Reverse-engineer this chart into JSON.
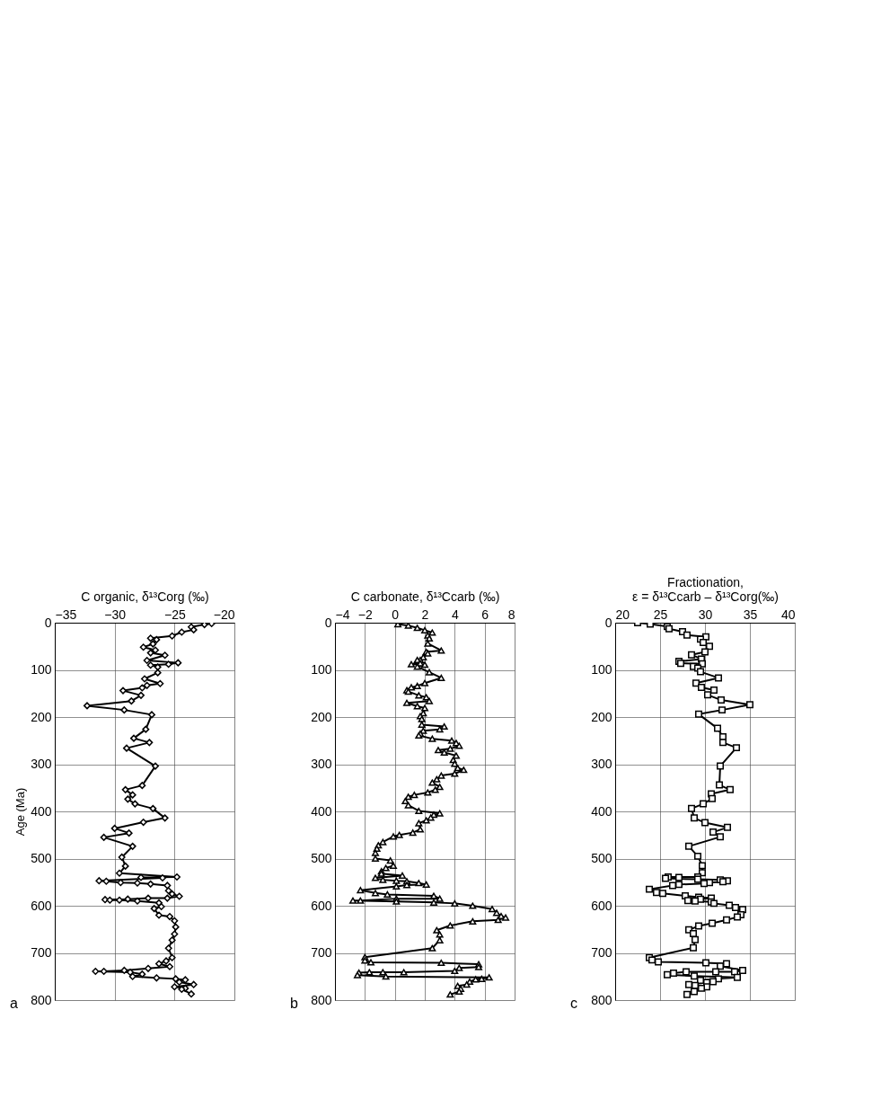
{
  "chart_data": [
    {
      "type": "line",
      "xlabel": "C organic, δ¹³Corg (‰)",
      "ylabel": "Age (Ma)",
      "xlim": [
        -35,
        -20
      ],
      "xticks": [
        -35,
        -30,
        -25,
        -20
      ],
      "ylim": [
        800,
        0
      ],
      "yticks": [
        0,
        100,
        200,
        300,
        400,
        500,
        600,
        700,
        800
      ],
      "grid": true,
      "marker": "diamond",
      "annotations": [
        "a"
      ],
      "series": [
        {
          "color": "#000000",
          "x": [
            -21.9,
            -22.5,
            -23.6,
            -23.4,
            -24.4,
            -25.2,
            -27.0,
            -26.5,
            -26.8,
            -27.6,
            -26.6,
            -27.0,
            -25.8,
            -27.3,
            -24.7,
            -25.5,
            -27.0,
            -26.4,
            -26.4,
            -27.5,
            -26.2,
            -27.3,
            -27.7,
            -29.3,
            -27.8,
            -28.6,
            -32.3,
            -29.2,
            -26.9,
            -27.4,
            -28.4,
            -27.1,
            -29.0,
            -26.6,
            -27.7,
            -29.1,
            -28.5,
            -28.9,
            -28.3,
            -26.8,
            -25.8,
            -27.6,
            -30.0,
            -28.8,
            -30.9,
            -28.5,
            -29.4,
            -29.1,
            -29.6,
            -24.8,
            -27.8,
            -26.0,
            -31.3,
            -30.7,
            -29.5,
            -28.1,
            -27.0,
            -25.6,
            -25.5,
            -25.2,
            -24.6,
            -25.6,
            -27.2,
            -28.9,
            -30.8,
            -30.4,
            -29.6,
            -28.1,
            -26.3,
            -26.1,
            -26.7,
            -26.3,
            -25.4,
            -25.0,
            -24.9,
            -25.0,
            -25.2,
            -25.5,
            -25.2,
            -25.7,
            -26.3,
            -25.4,
            -27.2,
            -29.2,
            -30.9,
            -31.6,
            -28.7,
            -27.7,
            -28.5,
            -26.5,
            -24.9,
            -24.1,
            -24.6,
            -23.4,
            -25.0,
            -24.1,
            -24.4,
            -23.6
          ],
          "values": [
            2,
            4,
            9,
            15,
            20,
            28,
            33,
            36,
            45,
            52,
            58,
            64,
            69,
            80,
            85,
            88,
            90,
            94,
            106,
            119,
            129,
            133,
            138,
            144,
            154,
            166,
            176,
            185,
            195,
            226,
            245,
            254,
            266,
            304,
            345,
            354,
            365,
            374,
            384,
            394,
            414,
            423,
            436,
            446,
            455,
            474,
            497,
            516,
            531,
            539,
            540,
            541,
            547,
            548,
            551,
            552,
            554,
            557,
            568,
            575,
            580,
            584,
            584,
            586,
            587,
            588,
            588,
            590,
            594,
            602,
            606,
            620,
            623,
            632,
            645,
            660,
            673,
            690,
            710,
            717,
            723,
            729,
            733,
            737,
            739,
            739,
            741,
            745,
            750,
            753,
            755,
            757,
            762,
            767,
            772,
            775,
            777,
            787
          ]
        }
      ]
    },
    {
      "type": "line",
      "xlabel": "C carbonate, δ¹³Ccarb (‰)",
      "xlim": [
        -4,
        8
      ],
      "xticks": [
        -4,
        -2,
        0,
        2,
        4,
        6,
        8
      ],
      "ylim": [
        800,
        0
      ],
      "yticks": [
        0,
        100,
        200,
        300,
        400,
        500,
        600,
        700,
        800
      ],
      "grid": true,
      "marker": "triangle",
      "annotations": [
        "b"
      ],
      "series": [
        {
          "color": "#000000",
          "x": [
            0.2,
            0.9,
            1.5,
            2.0,
            2.5,
            2.2,
            2.3,
            2.2,
            3.1,
            2.1,
            2.2,
            1.9,
            1.7,
            1.5,
            1.7,
            1.1,
            2.0,
            1.5,
            2.3,
            3.1,
            2.0,
            1.5,
            1.1,
            0.8,
            0.9,
            1.6,
            2.1,
            2.3,
            0.8,
            1.5,
            2.0,
            1.9,
            1.7,
            1.8,
            1.8,
            3.3,
            3.0,
            1.9,
            1.7,
            1.6,
            2.5,
            3.8,
            4.1,
            4.3,
            3.7,
            2.9,
            3.3,
            4.1,
            3.9,
            4.0,
            4.2,
            4.6,
            4.0,
            3.1,
            2.8,
            2.5,
            3.0,
            2.7,
            2.2,
            1.3,
            0.9,
            0.7,
            0.9,
            1.6,
            3.0,
            2.6,
            2.4,
            2.1,
            1.6,
            1.7,
            1.2,
            0.3,
            -0.1,
            -0.8,
            -1.1,
            -1.2,
            -1.3,
            -1.3,
            -0.3,
            -0.1,
            -0.6,
            -0.9,
            -0.9,
            0.5,
            -1.3,
            -0.8,
            0.1,
            0.8,
            1.6,
            2.1,
            0.8,
            0.1,
            -2.3,
            -1.3,
            -0.5,
            2.6,
            3.0,
            0.1,
            -2.3,
            -2.8,
            0.1,
            2.6,
            4.0,
            5.2,
            6.5,
            6.8,
            7.1,
            7.4,
            6.9,
            5.2,
            3.7,
            2.8,
            3.0,
            3.0,
            2.5,
            -2.0,
            -2.0,
            -1.6,
            3.1,
            5.6,
            5.6,
            4.3,
            4.0,
            0.6,
            -0.8,
            -1.7,
            -2.4,
            -2.5,
            -0.6,
            6.3,
            5.8,
            5.4,
            5.0,
            4.8,
            4.2,
            4.4,
            4.3,
            3.7
          ],
          "values": [
            3,
            6,
            11,
            16,
            21,
            27,
            33,
            44,
            59,
            62,
            65,
            73,
            79,
            79,
            86,
            88,
            89,
            93,
            105,
            117,
            128,
            134,
            137,
            143,
            146,
            154,
            158,
            166,
            170,
            177,
            181,
            192,
            198,
            204,
            216,
            220,
            226,
            229,
            235,
            239,
            246,
            250,
            255,
            261,
            267,
            270,
            275,
            282,
            291,
            299,
            308,
            312,
            320,
            324,
            332,
            339,
            348,
            354,
            360,
            365,
            369,
            378,
            387,
            399,
            404,
            407,
            413,
            419,
            425,
            438,
            445,
            450,
            453,
            465,
            472,
            479,
            488,
            500,
            504,
            515,
            520,
            527,
            532,
            536,
            541,
            545,
            547,
            548,
            552,
            555,
            556,
            559,
            567,
            573,
            576,
            579,
            585,
            585,
            589,
            589,
            591,
            593,
            595,
            600,
            607,
            615,
            622,
            625,
            630,
            633,
            642,
            652,
            661,
            673,
            690,
            709,
            716,
            720,
            721,
            724,
            730,
            732,
            738,
            741,
            741,
            741,
            742,
            747,
            750,
            752,
            755,
            756,
            761,
            767,
            770,
            776,
            782,
            788
          ]
        }
      ]
    },
    {
      "type": "line",
      "xlabel": "Fractionation,\nε = δ¹³Ccarb – δ¹³Corg(‰)",
      "xlim": [
        20,
        40
      ],
      "xticks": [
        20,
        25,
        30,
        35,
        40
      ],
      "ylim": [
        800,
        0
      ],
      "yticks": [
        0,
        100,
        200,
        300,
        400,
        500,
        600,
        700,
        800
      ],
      "grid": true,
      "marker": "square",
      "annotations": [
        "c"
      ],
      "series": [
        {
          "color": "#000000",
          "x": [
            22.5,
            23.9,
            25.8,
            26.0,
            27.5,
            28.0,
            30.1,
            29.5,
            29.8,
            30.5,
            30.0,
            28.5,
            29.6,
            27.1,
            27.3,
            29.7,
            28.7,
            29.2,
            29.5,
            31.5,
            29.0,
            29.6,
            31.0,
            30.3,
            31.8,
            35.0,
            31.9,
            29.3,
            31.4,
            32.0,
            32.0,
            33.5,
            31.7,
            31.6,
            32.8,
            30.7,
            30.8,
            29.8,
            28.5,
            28.8,
            30.0,
            32.5,
            30.9,
            31.7,
            28.2,
            29.2,
            29.7,
            29.7,
            29.2,
            25.9,
            27.1,
            25.6,
            29.2,
            31.7,
            32.5,
            32.0,
            30.5,
            29.9,
            27.1,
            26.4,
            23.8,
            24.6,
            25.3,
            27.8,
            29.3,
            30.7,
            29.5,
            28.1,
            28.9,
            30.7,
            31.0,
            32.7,
            33.4,
            34.2,
            34.0,
            33.6,
            32.4,
            30.8,
            29.3,
            28.2,
            28.7,
            28.9,
            28.7,
            23.8,
            24.1,
            24.8,
            30.1,
            32.4,
            31.7,
            34.2,
            33.3,
            31.2,
            27.9,
            26.5,
            25.8,
            28.8,
            33.6,
            31.5,
            29.5,
            30.9,
            30.2,
            28.2,
            28.9,
            30.2,
            29.6,
            28.8,
            28.0
          ],
          "values": [
            0,
            3,
            8,
            13,
            19,
            26,
            30,
            35,
            42,
            50,
            62,
            68,
            77,
            82,
            86,
            87,
            93,
            96,
            104,
            117,
            128,
            137,
            143,
            153,
            164,
            174,
            185,
            194,
            224,
            242,
            254,
            265,
            304,
            344,
            354,
            363,
            373,
            384,
            394,
            414,
            424,
            434,
            444,
            454,
            474,
            495,
            515,
            530,
            539,
            539,
            540,
            542,
            544,
            545,
            547,
            549,
            551,
            553,
            555,
            557,
            565,
            572,
            574,
            579,
            582,
            584,
            586,
            589,
            590,
            592,
            595,
            599,
            604,
            608,
            619,
            624,
            630,
            637,
            643,
            651,
            659,
            672,
            689,
            710,
            715,
            719,
            721,
            723,
            728,
            737,
            740,
            740,
            740,
            743,
            746,
            749,
            752,
            755,
            758,
            761,
            763,
            767,
            769,
            772,
            775,
            782,
            788
          ]
        }
      ]
    }
  ]
}
